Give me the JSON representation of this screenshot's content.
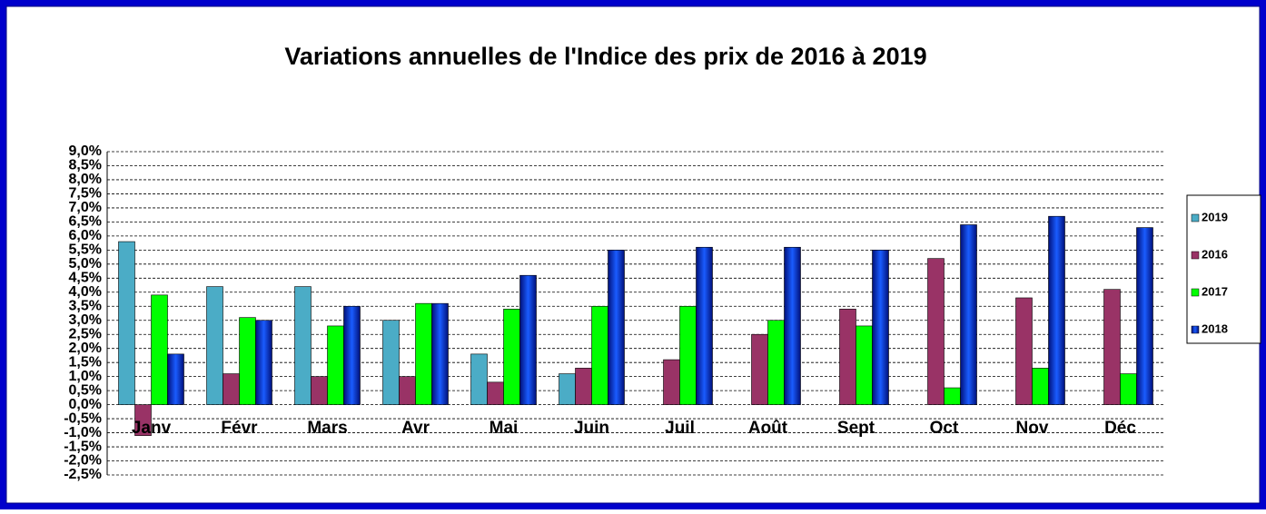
{
  "chart_data": {
    "type": "bar",
    "title": "Variations annuelles de l'Indice des prix de 2016 à 2019",
    "categories": [
      "Janv",
      "Févr",
      "Mars",
      "Avr",
      "Mai",
      "Juin",
      "Juil",
      "Août",
      "Sept",
      "Oct",
      "Nov",
      "Déc"
    ],
    "series": [
      {
        "name": "2019",
        "color": "#4bacc6",
        "values": [
          5.8,
          4.2,
          4.2,
          3.0,
          1.8,
          1.1,
          null,
          null,
          null,
          null,
          null,
          null
        ]
      },
      {
        "name": "2016",
        "color": "#993366",
        "values": [
          -1.1,
          1.1,
          1.0,
          1.0,
          0.8,
          1.3,
          1.6,
          2.5,
          3.4,
          5.2,
          3.8,
          4.1
        ]
      },
      {
        "name": "2017",
        "color": "#00ff00",
        "values": [
          3.9,
          3.1,
          2.8,
          3.6,
          3.4,
          3.5,
          3.5,
          3.0,
          2.8,
          0.6,
          1.3,
          1.1
        ]
      },
      {
        "name": "2018",
        "color": "#0033ff",
        "values": [
          1.8,
          3.0,
          3.5,
          3.6,
          4.6,
          5.5,
          5.6,
          5.6,
          5.5,
          6.4,
          6.7,
          6.3
        ]
      }
    ],
    "ylim": [
      -2.5,
      9.0
    ],
    "yticks": [
      {
        "value": -2.5,
        "label": "-2,5%"
      },
      {
        "value": -2.0,
        "label": "-2,0%"
      },
      {
        "value": -1.5,
        "label": "-1,5%"
      },
      {
        "value": -1.0,
        "label": "-1,0%"
      },
      {
        "value": -0.5,
        "label": "-0,5%"
      },
      {
        "value": 0,
        "label": "0,0%"
      },
      {
        "value": 0.5,
        "label": "0,5%"
      },
      {
        "value": 1.0,
        "label": "1,0%"
      },
      {
        "value": 1.5,
        "label": "1,5%"
      },
      {
        "value": 2.0,
        "label": "2,0%"
      },
      {
        "value": 2.5,
        "label": "2,5%"
      },
      {
        "value": 3.0,
        "label": "3,0%"
      },
      {
        "value": 3.5,
        "label": "3,5%"
      },
      {
        "value": 4.0,
        "label": "4,0%"
      },
      {
        "value": 4.5,
        "label": "4,5%"
      },
      {
        "value": 5.0,
        "label": "5,0%"
      },
      {
        "value": 5.5,
        "label": "5,5%"
      },
      {
        "value": 6.0,
        "label": "6,0%"
      },
      {
        "value": 6.5,
        "label": "6,5%"
      },
      {
        "value": 7.0,
        "label": "7,0%"
      },
      {
        "value": 7.5,
        "label": "7,5%"
      },
      {
        "value": 8.0,
        "label": "8,0%"
      },
      {
        "value": 8.5,
        "label": "8,5%"
      },
      {
        "value": 9.0,
        "label": "9,0%"
      }
    ],
    "grid": true,
    "legend": "right"
  }
}
